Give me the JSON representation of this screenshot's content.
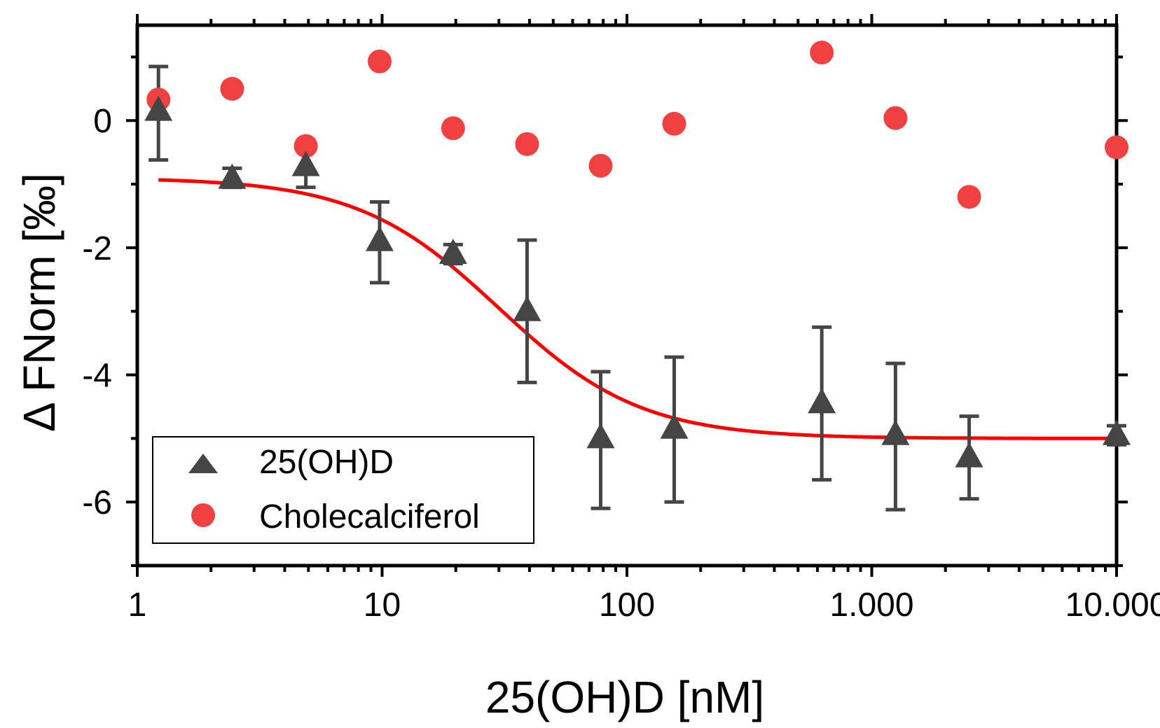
{
  "chart_data": {
    "type": "scatter",
    "title": "",
    "xlabel": "25(OH)D [nM]",
    "ylabel": "Δ FNorm [‰]",
    "x_scale": "log",
    "xlim": [
      1,
      10000
    ],
    "ylim": [
      -7,
      1.5
    ],
    "x_ticks": [
      {
        "value": 1,
        "label": "1"
      },
      {
        "value": 10,
        "label": "10"
      },
      {
        "value": 100,
        "label": "100"
      },
      {
        "value": 1000,
        "label": "1.000"
      },
      {
        "value": 10000,
        "label": "10.000"
      }
    ],
    "y_ticks": [
      {
        "value": 0,
        "label": "0"
      },
      {
        "value": -2,
        "label": "-2"
      },
      {
        "value": -4,
        "label": "-4"
      },
      {
        "value": -6,
        "label": "-6"
      }
    ],
    "legend_position": "bottom-left",
    "series": [
      {
        "name": "25(OH)D",
        "marker": "triangle",
        "color": "#454545",
        "points": [
          {
            "x": 1.22,
            "y": 0.15,
            "err_low": -0.62,
            "err_high": 0.85
          },
          {
            "x": 2.44,
            "y": -0.92,
            "err_low": -1.05,
            "err_high": -0.75
          },
          {
            "x": 4.88,
            "y": -0.72,
            "err_low": -1.05,
            "err_high": -0.4
          },
          {
            "x": 9.77,
            "y": -1.9,
            "err_low": -2.55,
            "err_high": -1.28
          },
          {
            "x": 19.5,
            "y": -2.1,
            "err_low": -2.25,
            "err_high": -1.95
          },
          {
            "x": 39.1,
            "y": -3.0,
            "err_low": -4.12,
            "err_high": -1.88
          },
          {
            "x": 78.1,
            "y": -5.0,
            "err_low": -6.1,
            "err_high": -3.95
          },
          {
            "x": 156,
            "y": -4.85,
            "err_low": -6.0,
            "err_high": -3.72
          },
          {
            "x": 625,
            "y": -4.45,
            "err_low": -5.65,
            "err_high": -3.25
          },
          {
            "x": 1250,
            "y": -4.95,
            "err_low": -6.12,
            "err_high": -3.82
          },
          {
            "x": 2500,
            "y": -5.3,
            "err_low": -5.95,
            "err_high": -4.65
          },
          {
            "x": 10000,
            "y": -4.95,
            "err_low": -5.1,
            "err_high": -4.8
          }
        ]
      },
      {
        "name": "Cholecalciferol",
        "marker": "circle",
        "color": "#f04040",
        "points": [
          {
            "x": 1.22,
            "y": 0.33
          },
          {
            "x": 2.44,
            "y": 0.5
          },
          {
            "x": 4.88,
            "y": -0.4
          },
          {
            "x": 9.77,
            "y": 0.93
          },
          {
            "x": 19.5,
            "y": -0.12
          },
          {
            "x": 39.1,
            "y": -0.37
          },
          {
            "x": 78.1,
            "y": -0.71
          },
          {
            "x": 156,
            "y": -0.05
          },
          {
            "x": 625,
            "y": 1.07
          },
          {
            "x": 1250,
            "y": 0.04
          },
          {
            "x": 2500,
            "y": -1.2
          },
          {
            "x": 10000,
            "y": -0.42
          }
        ]
      }
    ],
    "fit": {
      "name": "25(OH)D fit",
      "color": "#ff0000",
      "model": "hill",
      "top": -0.9,
      "bottom": -5.0,
      "ec50": 30,
      "hill": 1.5,
      "x_range": [
        1.22,
        10000
      ]
    }
  }
}
